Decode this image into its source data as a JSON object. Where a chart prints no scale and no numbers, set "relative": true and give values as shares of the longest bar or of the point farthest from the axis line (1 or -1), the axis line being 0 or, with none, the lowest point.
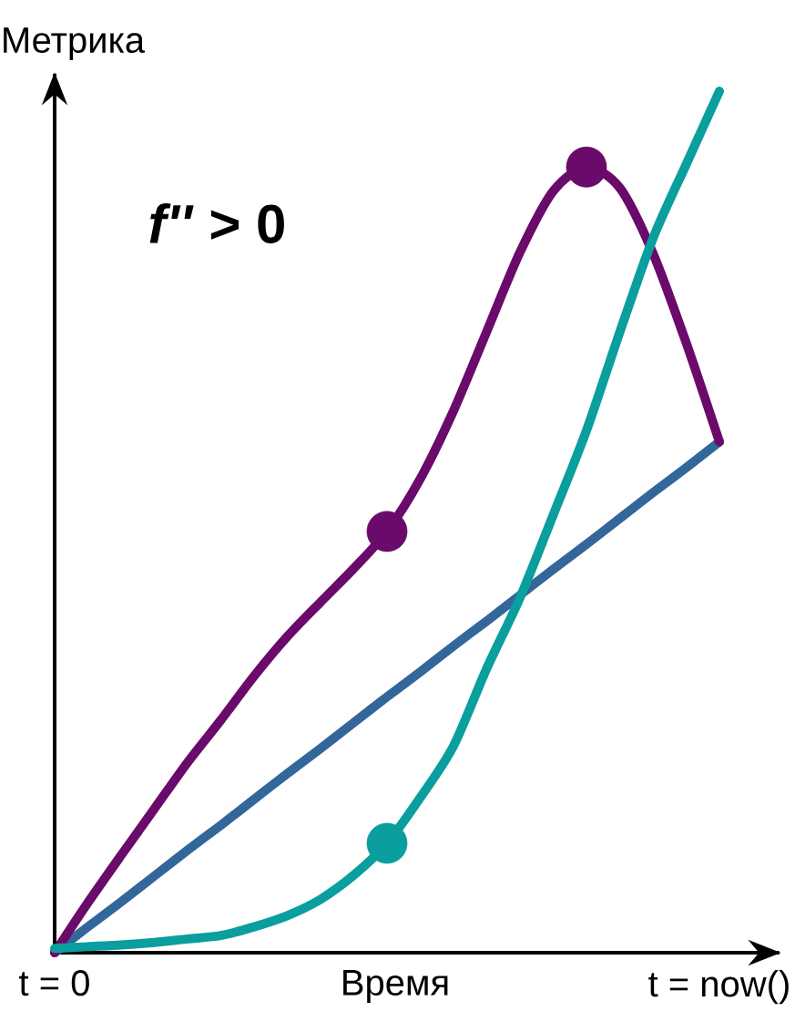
{
  "chart_data": {
    "type": "line",
    "relative": true,
    "xlabel": "Время",
    "ylabel": "Метрика",
    "categories": [
      "t = 0",
      null,
      null,
      null,
      null,
      null,
      null,
      null,
      null,
      null,
      null,
      null,
      null,
      null,
      null,
      null,
      null,
      null,
      null,
      null,
      "t = now()"
    ],
    "annotations": [
      "*f''* > 0"
    ],
    "series": [
      {
        "color": "#336699",
        "values": [
          0,
          0.03,
          0.059,
          0.089,
          0.119,
          0.148,
          0.178,
          0.208,
          0.237,
          0.267,
          0.297,
          0.326,
          0.356,
          0.385,
          0.415,
          0.445,
          0.474,
          0.504,
          0.534,
          0.563,
          0.593
        ]
      },
      {
        "color": "#6a0a6a",
        "values": [
          0,
          0.058,
          0.113,
          0.167,
          0.221,
          0.27,
          0.321,
          0.367,
          0.407,
          0.446,
          0.489,
          0.55,
          0.629,
          0.721,
          0.813,
          0.884,
          0.912,
          0.888,
          0.812,
          0.708,
          0.593
        ]
      },
      {
        "color": "#0a9e9e",
        "values": [
          0.005,
          0.007,
          0.009,
          0.012,
          0.016,
          0.02,
          0.03,
          0.043,
          0.062,
          0.09,
          0.127,
          0.18,
          0.24,
          0.33,
          0.412,
          0.508,
          0.606,
          0.72,
          0.829,
          0.915,
          1
        ]
      },
      {
        "type": "scatter",
        "marker": "circle",
        "color": "#6a0a6a",
        "values": [
          null,
          null,
          null,
          null,
          null,
          null,
          null,
          null,
          null,
          null,
          0.489,
          null,
          null,
          null,
          null,
          null,
          0.912,
          null,
          null,
          null,
          null
        ]
      },
      {
        "type": "scatter",
        "marker": "circle",
        "color": "#0a9e9e",
        "values": [
          null,
          null,
          null,
          null,
          null,
          null,
          null,
          null,
          null,
          null,
          0.127,
          null,
          null,
          null,
          null,
          null,
          null,
          null,
          null,
          null,
          null
        ]
      }
    ]
  }
}
